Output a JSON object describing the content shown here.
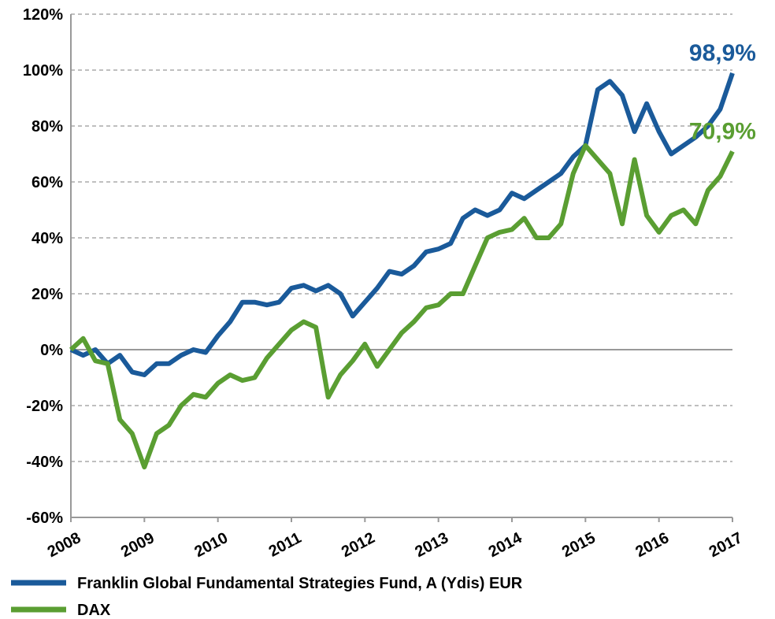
{
  "chart_data": {
    "type": "line",
    "categories": [
      "2008",
      null,
      null,
      null,
      null,
      null,
      "2009",
      null,
      null,
      null,
      null,
      null,
      "2010",
      null,
      null,
      null,
      null,
      null,
      "2011",
      null,
      null,
      null,
      null,
      null,
      "2012",
      null,
      null,
      null,
      null,
      null,
      "2013",
      null,
      null,
      null,
      null,
      null,
      "2014",
      null,
      null,
      null,
      null,
      null,
      "2015",
      null,
      null,
      null,
      null,
      null,
      "2016",
      null,
      null,
      null,
      null,
      null,
      "2017"
    ],
    "series": [
      {
        "name": "Franklin Global Fundamental Strategies Fund, A (Ydis) EUR",
        "color": "#1a5a9a",
        "end_label": "98,9%",
        "values": [
          0,
          -2,
          0,
          -5,
          -2,
          -8,
          -9,
          -5,
          -5,
          -2,
          0,
          -1,
          5,
          10,
          17,
          17,
          16,
          17,
          22,
          23,
          21,
          23,
          20,
          12,
          17,
          22,
          28,
          27,
          30,
          35,
          36,
          38,
          47,
          50,
          48,
          50,
          56,
          54,
          57,
          60,
          63,
          69,
          73,
          93,
          96,
          91,
          78,
          88,
          78,
          70,
          73,
          76,
          80,
          86,
          98.9
        ]
      },
      {
        "name": "DAX",
        "color": "#5a9e32",
        "end_label": "70,9%",
        "values": [
          0,
          4,
          -4,
          -5,
          -25,
          -30,
          -42,
          -30,
          -27,
          -20,
          -16,
          -17,
          -12,
          -9,
          -11,
          -10,
          -3,
          2,
          7,
          10,
          8,
          -17,
          -9,
          -4,
          2,
          -6,
          0,
          6,
          10,
          15,
          16,
          20,
          20,
          30,
          40,
          42,
          43,
          47,
          40,
          40,
          45,
          63,
          73,
          68,
          63,
          45,
          68,
          48,
          42,
          48,
          50,
          45,
          57,
          62,
          70.9
        ]
      }
    ],
    "ylim": [
      -60,
      120
    ],
    "yticks": [
      {
        "value": -60,
        "label": "-60%"
      },
      {
        "value": -40,
        "label": "-40%"
      },
      {
        "value": -20,
        "label": "-20%"
      },
      {
        "value": 0,
        "label": "0%"
      },
      {
        "value": 20,
        "label": "20%"
      },
      {
        "value": 40,
        "label": "40%"
      },
      {
        "value": 60,
        "label": "60%"
      },
      {
        "value": 80,
        "label": "80%"
      },
      {
        "value": 100,
        "label": "100%"
      },
      {
        "value": 120,
        "label": "120%"
      }
    ],
    "grid": true,
    "legend": "bottom"
  }
}
